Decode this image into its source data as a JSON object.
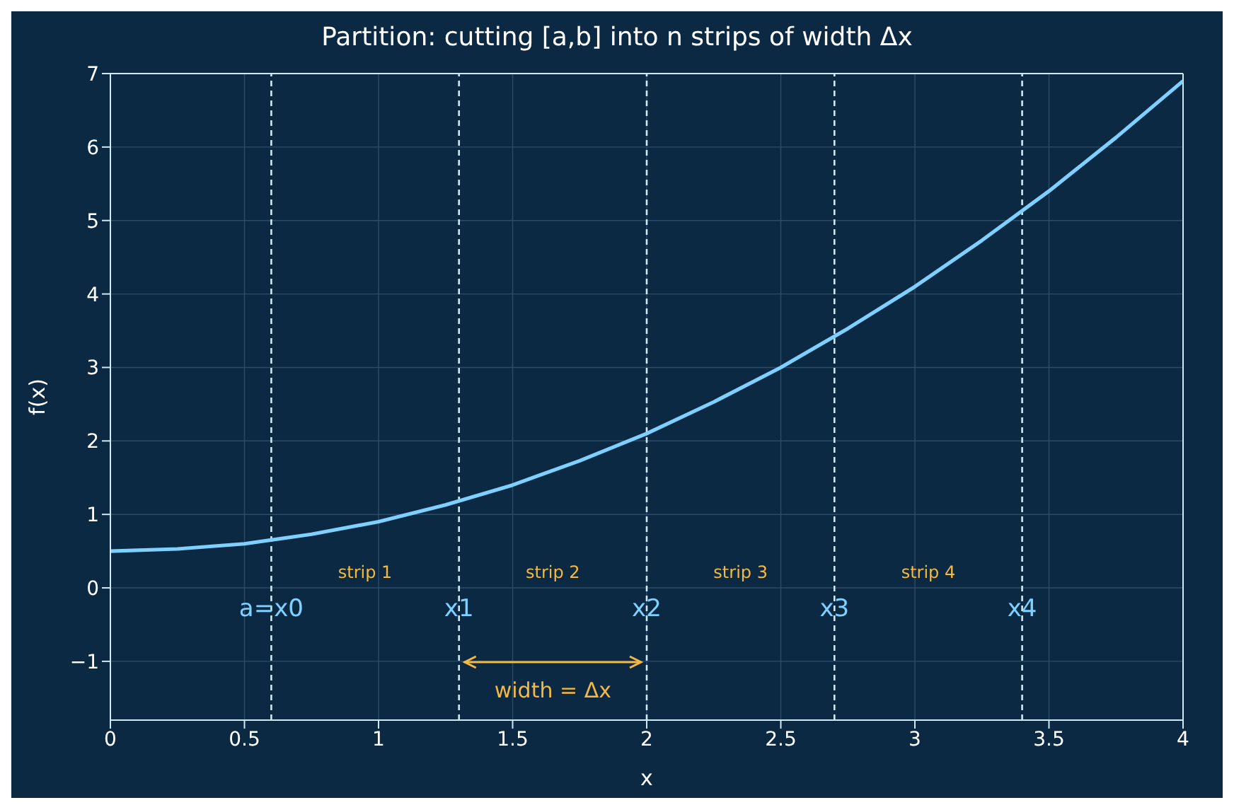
{
  "chart_data": {
    "type": "line",
    "title": "Partition: cutting [a,b] into n strips of width Δx",
    "xlabel": "x",
    "ylabel": "f(x)",
    "x": [
      0,
      0.25,
      0.5,
      0.75,
      1,
      1.25,
      1.5,
      1.75,
      2,
      2.25,
      2.5,
      2.75,
      3,
      3.25,
      3.5,
      3.75,
      4
    ],
    "series": [
      {
        "color": "#7fd0ff",
        "values": [
          0.5,
          0.53,
          0.6,
          0.73,
          0.9,
          1.13,
          1.4,
          1.73,
          2.1,
          2.53,
          3.0,
          3.53,
          4.1,
          4.73,
          5.4,
          6.13,
          6.9
        ]
      }
    ],
    "xlim": [
      0,
      4
    ],
    "xticks": [
      0,
      0.5,
      1,
      1.5,
      2,
      2.5,
      3,
      3.5,
      4
    ],
    "ylim": [
      -1.8,
      7
    ],
    "yticks": [
      {
        "value": -1,
        "label": "−1"
      },
      0,
      1,
      2,
      3,
      4,
      5,
      6,
      7
    ],
    "grid": true,
    "marker": "none",
    "line_style": "solid",
    "ref_lines": [
      {
        "axis": "x",
        "value": 0.6,
        "label": "a=x0",
        "color": "#cfe8f5",
        "line_style": "dashed"
      },
      {
        "axis": "x",
        "value": 1.3,
        "label": "x1",
        "color": "#cfe8f5",
        "line_style": "dashed"
      },
      {
        "axis": "x",
        "value": 2.0,
        "label": "x2",
        "color": "#cfe8f5",
        "line_style": "dashed"
      },
      {
        "axis": "x",
        "value": 2.7,
        "label": "x3",
        "color": "#cfe8f5",
        "line_style": "dashed"
      },
      {
        "axis": "x",
        "value": 3.4,
        "label": "x4",
        "color": "#cfe8f5",
        "line_style": "dashed"
      }
    ],
    "annotations": [
      "strip 1",
      "strip 2",
      "strip 3",
      "strip 4",
      "width = Δx"
    ]
  }
}
